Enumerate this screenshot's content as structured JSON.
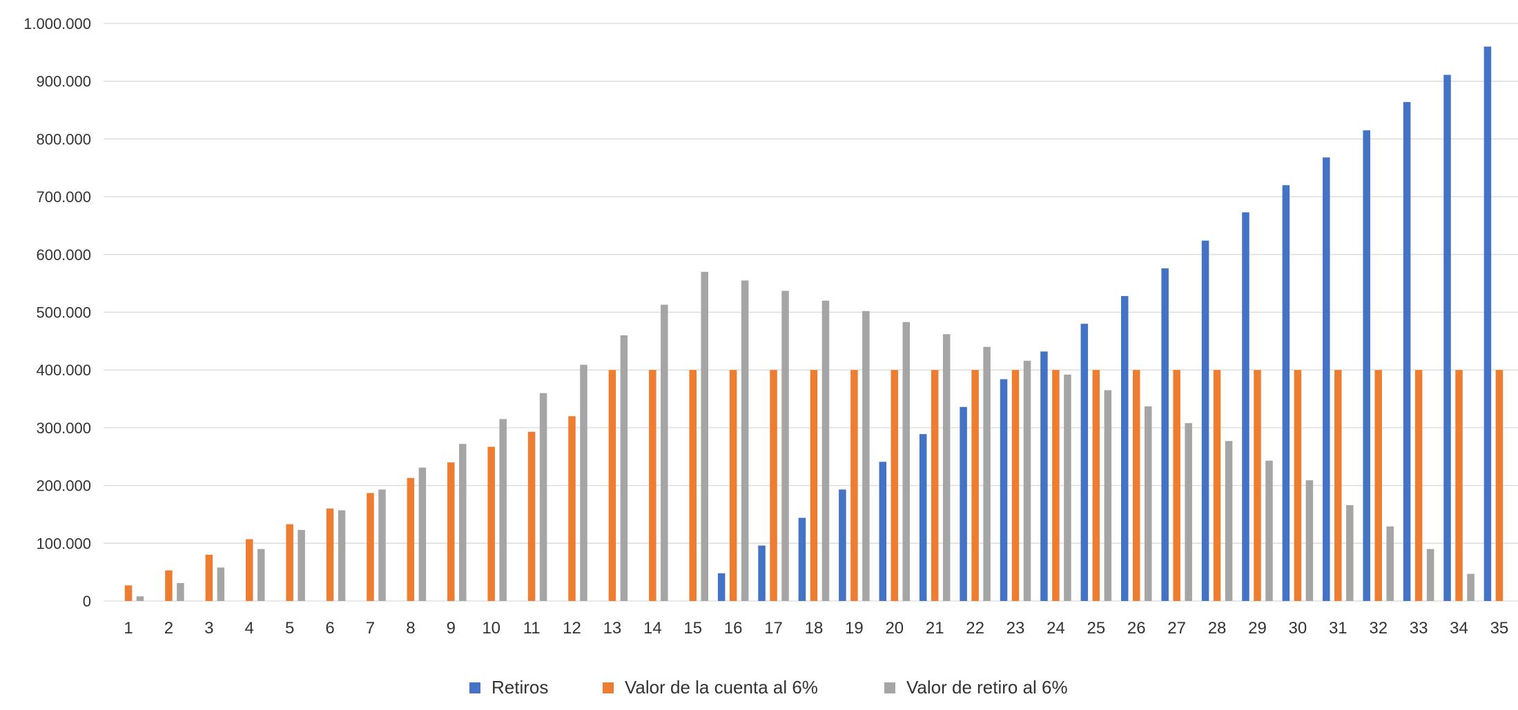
{
  "chart_data": {
    "type": "bar",
    "title": "",
    "xlabel": "",
    "ylabel": "",
    "ylim": [
      0,
      1000000
    ],
    "y_ticks": [
      0,
      100000,
      200000,
      300000,
      400000,
      500000,
      600000,
      700000,
      800000,
      900000,
      1000000
    ],
    "y_tick_labels": [
      "0",
      "100.000",
      "200.000",
      "300.000",
      "400.000",
      "500.000",
      "600.000",
      "700.000",
      "800.000",
      "900.000",
      "1.000.000"
    ],
    "grid": "horizontal",
    "legend_position": "bottom",
    "categories": [
      "1",
      "2",
      "3",
      "4",
      "5",
      "6",
      "7",
      "8",
      "9",
      "10",
      "11",
      "12",
      "13",
      "14",
      "15",
      "16",
      "17",
      "18",
      "19",
      "20",
      "21",
      "22",
      "23",
      "24",
      "25",
      "26",
      "27",
      "28",
      "29",
      "30",
      "31",
      "32",
      "33",
      "34",
      "35"
    ],
    "series": [
      {
        "name": "Retiros",
        "color": "#4472C4",
        "values": [
          0,
          0,
          0,
          0,
          0,
          0,
          0,
          0,
          0,
          0,
          0,
          0,
          0,
          0,
          0,
          48000,
          96000,
          144000,
          193000,
          241000,
          289000,
          336000,
          384000,
          432000,
          480000,
          528000,
          576000,
          624000,
          673000,
          720000,
          768000,
          815000,
          864000,
          911000,
          960000
        ]
      },
      {
        "name": "Valor de la cuenta al 6%",
        "color": "#ED7D31",
        "values": [
          27000,
          53000,
          80000,
          107000,
          133000,
          160000,
          187000,
          213000,
          240000,
          267000,
          293000,
          320000,
          400000,
          400000,
          400000,
          400000,
          400000,
          400000,
          400000,
          400000,
          400000,
          400000,
          400000,
          400000,
          400000,
          400000,
          400000,
          400000,
          400000,
          400000,
          400000,
          400000,
          400000,
          400000,
          400000
        ]
      },
      {
        "name": "Valor de retiro al 6%",
        "color": "#A5A5A5",
        "values": [
          8000,
          31000,
          58000,
          90000,
          123000,
          157000,
          193000,
          231000,
          272000,
          315000,
          360000,
          409000,
          460000,
          513000,
          570000,
          555000,
          537000,
          520000,
          502000,
          483000,
          462000,
          440000,
          416000,
          392000,
          365000,
          337000,
          308000,
          277000,
          243000,
          209000,
          166000,
          129000,
          90000,
          47000,
          0
        ]
      }
    ]
  }
}
